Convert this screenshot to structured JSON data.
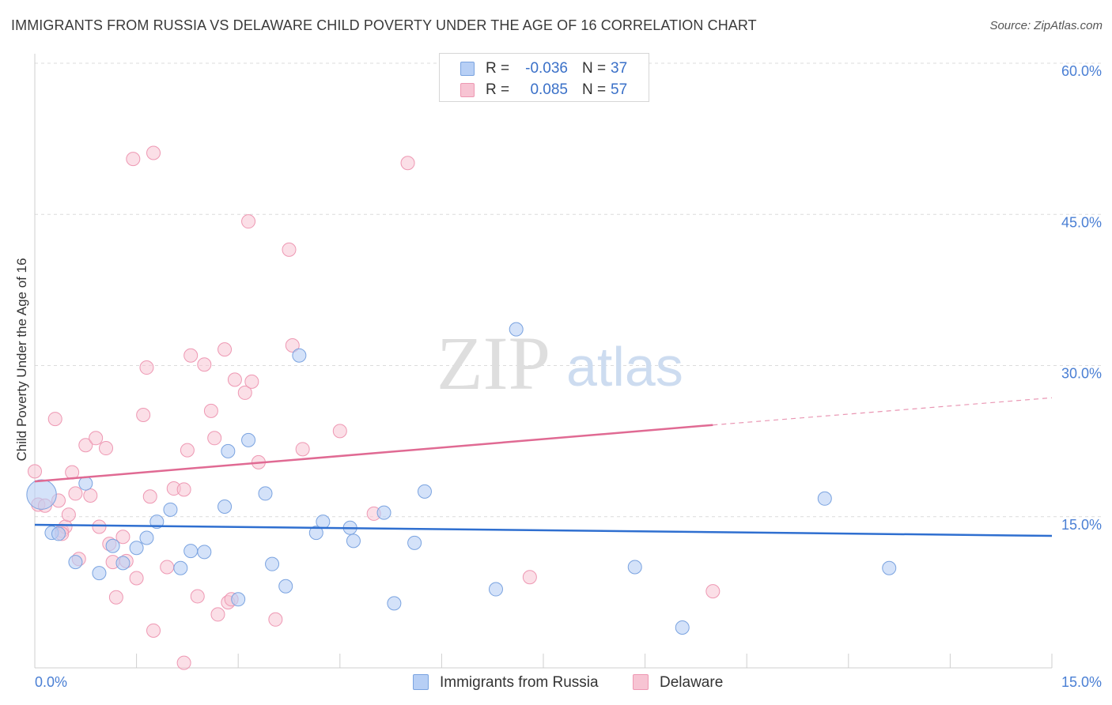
{
  "header": {
    "title": "IMMIGRANTS FROM RUSSIA VS DELAWARE CHILD POVERTY UNDER THE AGE OF 16 CORRELATION CHART",
    "source": "Source: ZipAtlas.com"
  },
  "watermark": {
    "zip": "ZIP",
    "atlas": "atlas"
  },
  "legend_top": {
    "rows": [
      {
        "r_label": "R =",
        "r_value": "-0.036",
        "n_label": "N =",
        "n_value": "37"
      },
      {
        "r_label": "R =",
        "r_value": "0.085",
        "n_label": "N =",
        "n_value": "57"
      }
    ]
  },
  "legend_bottom": {
    "items": [
      {
        "label": "Immigrants from Russia"
      },
      {
        "label": "Delaware"
      }
    ]
  },
  "colors": {
    "blue_fill": "#b7cff5",
    "blue_stroke": "#7aa3e0",
    "blue_line": "#2f6fd0",
    "pink_fill": "#f7c4d3",
    "pink_stroke": "#ee98b3",
    "pink_line": "#e06a93",
    "tick_text": "#4a7fd4"
  },
  "chart_data": {
    "type": "scatter",
    "title": "IMMIGRANTS FROM RUSSIA VS DELAWARE CHILD POVERTY UNDER THE AGE OF 16 CORRELATION CHART",
    "xlabel": "",
    "ylabel": "Child Poverty Under the Age of 16",
    "xlim": [
      0,
      15
    ],
    "ylim": [
      0,
      60
    ],
    "x_tick_labels": [
      "0.0%",
      "15.0%"
    ],
    "y_ticks": [
      15,
      30,
      45,
      60
    ],
    "y_tick_labels": [
      "15.0%",
      "30.0%",
      "45.0%",
      "60.0%"
    ],
    "grid": true,
    "series": [
      {
        "name": "Immigrants from Russia",
        "r": -0.036,
        "n": 37,
        "trend": {
          "x0": 0,
          "y0": 14.2,
          "x1": 15,
          "y1": 13.1
        },
        "points": [
          [
            0.1,
            17.2,
            2.2
          ],
          [
            0.25,
            13.4,
            1
          ],
          [
            0.35,
            13.3,
            1
          ],
          [
            0.6,
            10.5,
            1
          ],
          [
            0.75,
            18.3,
            1
          ],
          [
            0.95,
            9.4,
            1
          ],
          [
            1.15,
            12.1,
            1
          ],
          [
            1.3,
            10.4,
            1
          ],
          [
            1.5,
            11.9,
            1
          ],
          [
            1.65,
            12.9,
            1
          ],
          [
            1.8,
            14.5,
            1
          ],
          [
            2.0,
            15.7,
            1
          ],
          [
            2.15,
            9.9,
            1
          ],
          [
            2.3,
            11.6,
            1
          ],
          [
            2.5,
            11.5,
            1
          ],
          [
            2.8,
            16.0,
            1
          ],
          [
            2.85,
            21.5,
            1
          ],
          [
            3.0,
            6.8,
            1
          ],
          [
            3.15,
            22.6,
            1
          ],
          [
            3.4,
            17.3,
            1
          ],
          [
            3.5,
            10.3,
            1
          ],
          [
            3.7,
            8.1,
            1
          ],
          [
            3.9,
            31.0,
            1
          ],
          [
            4.15,
            13.4,
            1
          ],
          [
            4.25,
            14.5,
            1
          ],
          [
            4.65,
            13.9,
            1
          ],
          [
            4.7,
            12.6,
            1
          ],
          [
            5.15,
            15.4,
            1
          ],
          [
            5.3,
            6.4,
            1
          ],
          [
            5.6,
            12.4,
            1
          ],
          [
            5.75,
            17.5,
            1
          ],
          [
            6.8,
            7.8,
            1
          ],
          [
            7.1,
            33.6,
            1
          ],
          [
            8.85,
            10.0,
            1
          ],
          [
            9.55,
            4.0,
            1
          ],
          [
            11.65,
            16.8,
            1
          ],
          [
            12.6,
            9.9,
            1
          ]
        ]
      },
      {
        "name": "Delaware",
        "r": 0.085,
        "n": 57,
        "trend": {
          "x0": 0,
          "y0": 18.5,
          "x1": 10.0,
          "y1": 24.1,
          "dash_x1": 15,
          "dash_y1": 26.8
        },
        "points": [
          [
            0.0,
            19.5,
            1
          ],
          [
            0.05,
            16.2,
            1
          ],
          [
            0.15,
            16.1,
            1
          ],
          [
            0.3,
            24.7,
            1
          ],
          [
            0.35,
            16.6,
            1
          ],
          [
            0.4,
            13.6,
            1
          ],
          [
            0.45,
            14.0,
            1
          ],
          [
            0.5,
            15.2,
            1
          ],
          [
            0.55,
            19.4,
            1
          ],
          [
            0.6,
            17.3,
            1
          ],
          [
            0.65,
            10.8,
            1
          ],
          [
            0.75,
            22.1,
            1
          ],
          [
            0.82,
            17.1,
            1
          ],
          [
            0.9,
            22.8,
            1
          ],
          [
            0.95,
            14.0,
            1
          ],
          [
            1.05,
            21.8,
            1
          ],
          [
            1.1,
            12.3,
            1
          ],
          [
            1.15,
            10.5,
            1
          ],
          [
            1.2,
            7.0,
            1
          ],
          [
            1.3,
            13.0,
            1
          ],
          [
            1.35,
            10.6,
            1
          ],
          [
            1.5,
            8.9,
            1
          ],
          [
            1.45,
            50.5,
            1
          ],
          [
            1.6,
            25.1,
            1
          ],
          [
            1.7,
            17.0,
            1
          ],
          [
            1.65,
            29.8,
            1
          ],
          [
            1.75,
            3.7,
            1
          ],
          [
            1.75,
            51.1,
            1
          ],
          [
            1.95,
            10.0,
            1
          ],
          [
            2.05,
            17.8,
            1
          ],
          [
            2.2,
            17.7,
            1
          ],
          [
            2.25,
            21.6,
            1
          ],
          [
            2.3,
            31.0,
            1
          ],
          [
            2.4,
            7.1,
            1
          ],
          [
            2.5,
            30.1,
            1
          ],
          [
            2.6,
            25.5,
            1
          ],
          [
            2.65,
            22.8,
            1
          ],
          [
            2.7,
            5.3,
            1
          ],
          [
            2.8,
            31.6,
            1
          ],
          [
            2.85,
            6.5,
            1
          ],
          [
            2.9,
            6.8,
            1
          ],
          [
            2.95,
            28.6,
            1
          ],
          [
            3.1,
            27.3,
            1
          ],
          [
            3.15,
            44.3,
            1
          ],
          [
            3.2,
            28.4,
            1
          ],
          [
            3.3,
            20.4,
            1
          ],
          [
            3.55,
            4.8,
            1
          ],
          [
            3.75,
            41.5,
            1
          ],
          [
            3.8,
            32.0,
            1
          ],
          [
            3.95,
            21.7,
            1
          ],
          [
            4.5,
            23.5,
            1
          ],
          [
            5.0,
            15.3,
            1
          ],
          [
            5.5,
            50.1,
            1
          ],
          [
            7.3,
            9.0,
            1
          ],
          [
            10.0,
            7.6,
            1
          ],
          [
            2.2,
            0.5,
            1
          ],
          [
            0.4,
            13.3,
            1
          ]
        ]
      }
    ]
  }
}
